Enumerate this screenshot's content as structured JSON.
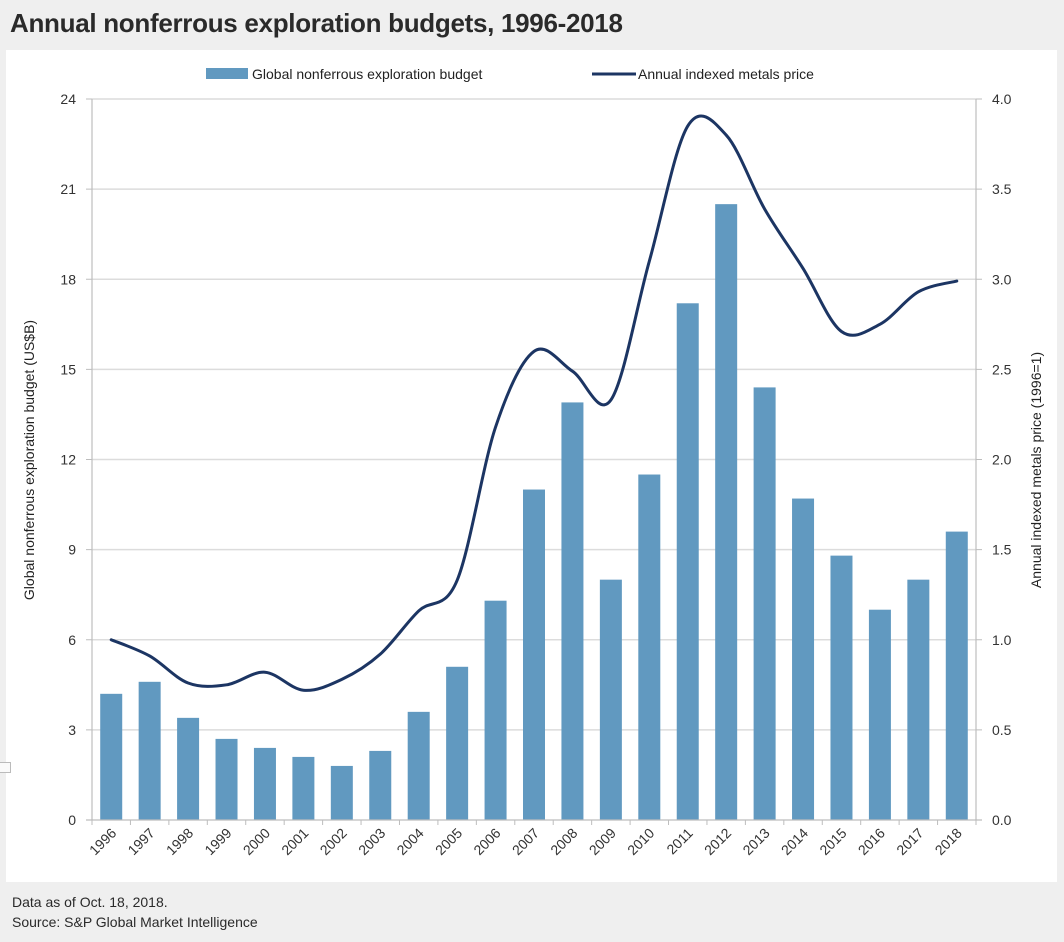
{
  "page": {
    "title": "Annual nonferrous exploration budgets, 1996-2018",
    "footer_note": "Data as of Oct. 18, 2018.",
    "footer_source": "Source: S&P Global Market Intelligence"
  },
  "colors": {
    "bar": "#6199c0",
    "line": "#1c3563",
    "grid": "#dcdcdc",
    "axis": "#bdbdbd",
    "background": "#efefef",
    "panel": "#ffffff"
  },
  "chart_data": {
    "type": "bar+line",
    "title": "Annual nonferrous exploration budgets, 1996-2018",
    "categories": [
      "1996",
      "1997",
      "1998",
      "1999",
      "2000",
      "2001",
      "2002",
      "2003",
      "2004",
      "2005",
      "2006",
      "2007",
      "2008",
      "2009",
      "2010",
      "2011",
      "2012",
      "2013",
      "2014",
      "2015",
      "2016",
      "2017",
      "2018"
    ],
    "series": [
      {
        "name": "Global nonferrous exploration budget",
        "type": "bar",
        "axis": "left",
        "values": [
          4.2,
          4.6,
          3.4,
          2.7,
          2.4,
          2.1,
          1.8,
          2.3,
          3.6,
          5.1,
          7.3,
          11.0,
          13.9,
          8.0,
          11.5,
          17.2,
          20.5,
          14.4,
          10.7,
          8.8,
          7.0,
          8.0,
          9.6
        ]
      },
      {
        "name": "Annual indexed metals price",
        "type": "line",
        "axis": "right",
        "smooth": true,
        "values": [
          1.0,
          0.91,
          0.76,
          0.75,
          0.82,
          0.72,
          0.78,
          0.92,
          1.16,
          1.33,
          2.18,
          2.6,
          2.49,
          2.33,
          3.1,
          3.85,
          3.8,
          3.39,
          3.06,
          2.71,
          2.75,
          2.93,
          2.99
        ]
      }
    ],
    "ylabel": "Global nonferrous exploration budget (US$B)",
    "ylabel_right": "Annual indexed metals price  (1996=1)",
    "xlabel": "",
    "ylim": [
      0,
      24
    ],
    "ylim_right": [
      0,
      4.0
    ],
    "yticks": [
      "0",
      "3",
      "6",
      "9",
      "12",
      "15",
      "18",
      "21",
      "24"
    ],
    "yticks_right": [
      "0.0",
      "0.5",
      "1.0",
      "1.5",
      "2.0",
      "2.5",
      "3.0",
      "3.5",
      "4.0"
    ],
    "grid": true,
    "legend_position": "top-center"
  }
}
